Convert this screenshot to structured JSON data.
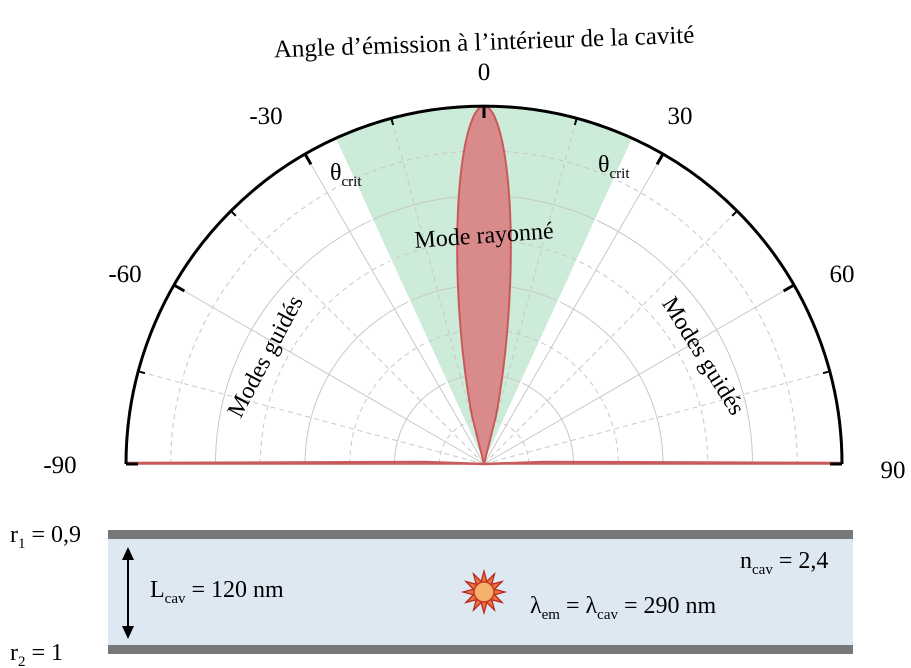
{
  "diagram": {
    "title": "Angle d’émission à l’intérieur de la cavité",
    "angle_ticks": [
      {
        "value": 0,
        "label": "0"
      },
      {
        "value": -30,
        "label": "-30"
      },
      {
        "value": 30,
        "label": "30"
      },
      {
        "value": -60,
        "label": "-60"
      },
      {
        "value": 60,
        "label": "60"
      },
      {
        "value": -90,
        "label": "-90"
      },
      {
        "value": 90,
        "label": "90"
      }
    ],
    "critical_angle_deg": 24.6,
    "theta_crit_main": "θ",
    "theta_crit_sub": "crit",
    "radiated_mode_label": "Mode rayonné",
    "guided_modes_left": "Modes guidés",
    "guided_modes_right": "Modes guidés",
    "colors": {
      "radiated_cone": "#cdebd9",
      "emission_lobe": "#d98a8a",
      "lobe_edge": "#c85a5a",
      "cavity_fill": "#dde8f3",
      "mirror": "#777777",
      "grid": "#c8c8c8"
    }
  },
  "cavity": {
    "r1_main": "r",
    "r1_sub": "1",
    "r1_value": " = 0,9",
    "r2_main": "r",
    "r2_sub": "2",
    "r2_value": " = 1",
    "length_main": "L",
    "length_sub": "cav",
    "length_value": " = 120 nm",
    "index_main": "n",
    "index_sub": "cav",
    "index_value": " = 2,4",
    "lambda_em_main": "λ",
    "lambda_em_sub": "em",
    "lambda_eq": " = ",
    "lambda_cav_main": "λ",
    "lambda_cav_sub": "cav",
    "lambda_value": " = 290 nm"
  }
}
